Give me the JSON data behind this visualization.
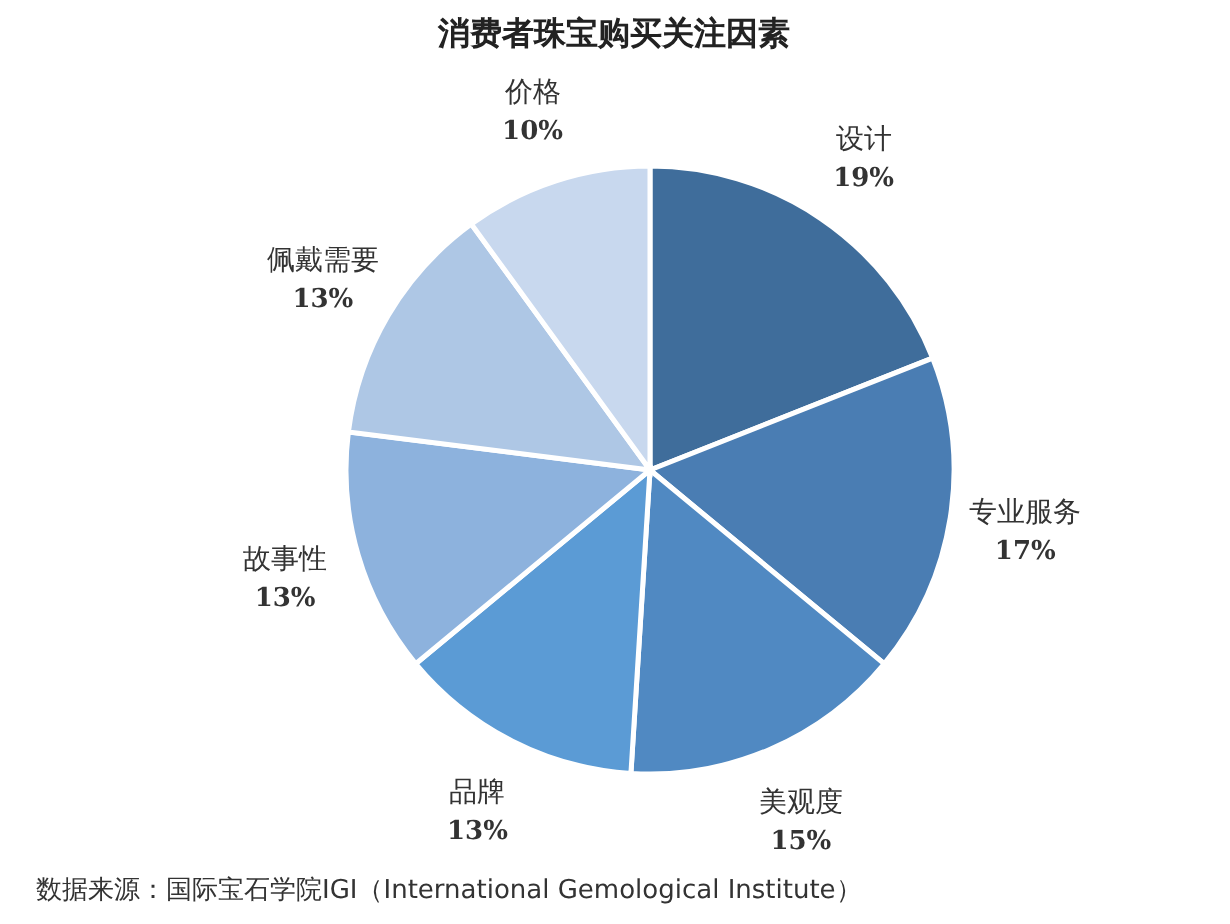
{
  "chart_data": {
    "type": "pie",
    "title": "消费者珠宝购买关注因素",
    "categories": [
      "设计",
      "专业服务",
      "美观度",
      "品牌",
      "故事性",
      "佩戴需要",
      "价格"
    ],
    "values": [
      19,
      17,
      15,
      13,
      13,
      13,
      10
    ],
    "colors": [
      "#3f6d9b",
      "#4a7db3",
      "#5089c2",
      "#5b9bd5",
      "#8db2dd",
      "#aec7e5",
      "#c8d8ee"
    ],
    "value_labels": [
      "19%",
      "17%",
      "15%",
      "13%",
      "13%",
      "13%",
      "10%"
    ],
    "annotations": [
      "数据来源：国际宝石学院IGI（International Gemological Institute）"
    ]
  }
}
